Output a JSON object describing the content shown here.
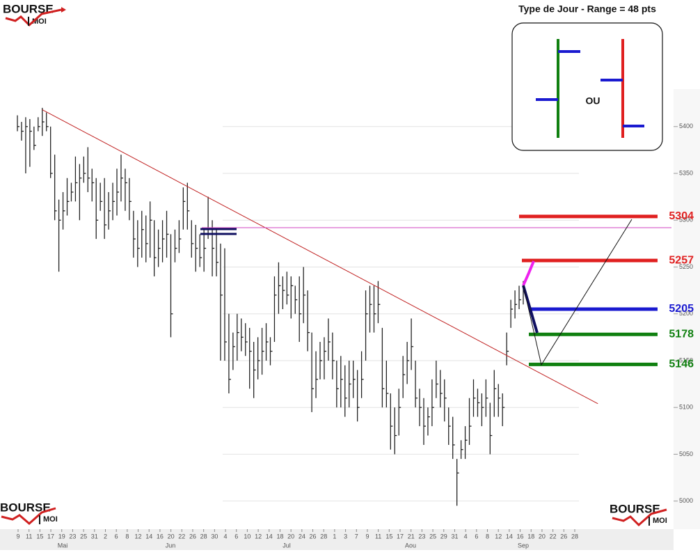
{
  "logo": {
    "word": "BOURSE",
    "sub": "MOI"
  },
  "chart_data": {
    "type": "ohlc",
    "ylim": [
      4970,
      5440
    ],
    "yticks": [
      5000,
      5050,
      5100,
      5150,
      5200,
      5250,
      5300,
      5350,
      5400
    ],
    "grid": true,
    "categories": [
      "9",
      "11",
      "15",
      "17",
      "19",
      "23",
      "25",
      "31",
      "2",
      "6",
      "8",
      "12",
      "14",
      "16",
      "20",
      "22",
      "26",
      "28",
      "30",
      "4",
      "6",
      "10",
      "12",
      "14",
      "18",
      "20",
      "24",
      "26",
      "28",
      "1",
      "3",
      "7",
      "9",
      "11",
      "15",
      "17",
      "21",
      "23",
      "25",
      "29",
      "31",
      "4",
      "6",
      "8",
      "12",
      "14",
      "16",
      "18",
      "20",
      "22",
      "26",
      "28"
    ],
    "months": [
      "Mai",
      "Jun",
      "Jul",
      "Aou",
      "Sep"
    ],
    "series": [
      {
        "color": "#222222",
        "high": [
          5412,
          5405,
          5410,
          5408,
          5400,
          5410,
          5420,
          5415,
          5400,
          5370,
          5322,
          5330,
          5345,
          5340,
          5368,
          5360,
          5368,
          5378,
          5355,
          5345,
          5340,
          5345,
          5330,
          5340,
          5355,
          5370,
          5355,
          5345,
          5310,
          5300,
          5310,
          5305,
          5320,
          5300,
          5290,
          5300,
          5310,
          5285,
          5290,
          5300,
          5335,
          5340,
          5300,
          5295,
          5285,
          5290,
          5325,
          5300,
          5290,
          5275,
          5270,
          5200,
          5180,
          5200,
          5195,
          5190,
          5185,
          5170,
          5175,
          5185,
          5190,
          5175,
          5240,
          5255,
          5240,
          5245,
          5240,
          5230,
          5240,
          5250,
          5225,
          5180,
          5160,
          5170,
          5175,
          5195,
          5180,
          5150,
          5155,
          5145,
          5150,
          5150,
          5140,
          5160,
          5225,
          5230,
          5230,
          5235,
          5185,
          5150,
          5115,
          5100,
          5120,
          5155,
          5170,
          5195,
          5150,
          5120,
          5110,
          5100,
          5130,
          5150,
          5140,
          5130,
          5100,
          5090,
          5045,
          5065,
          5080,
          5110,
          5130,
          5120,
          5115,
          5130,
          5105,
          5140,
          5125,
          5115,
          5180,
          5215,
          5225,
          5230,
          5235
        ],
        "low": [
          5395,
          5385,
          5350,
          5357,
          5375,
          5395,
          5390,
          5395,
          5345,
          5300,
          5245,
          5290,
          5305,
          5320,
          5320,
          5300,
          5340,
          5330,
          5320,
          5280,
          5310,
          5280,
          5290,
          5300,
          5305,
          5320,
          5310,
          5300,
          5260,
          5250,
          5260,
          5255,
          5260,
          5240,
          5250,
          5255,
          5260,
          5175,
          5255,
          5265,
          5290,
          5290,
          5260,
          5245,
          5250,
          5245,
          5280,
          5240,
          5240,
          5150,
          5150,
          5115,
          5140,
          5150,
          5160,
          5155,
          5120,
          5110,
          5130,
          5135,
          5150,
          5145,
          5170,
          5200,
          5205,
          5210,
          5195,
          5200,
          5170,
          5190,
          5160,
          5095,
          5110,
          5130,
          5130,
          5150,
          5130,
          5100,
          5100,
          5090,
          5100,
          5110,
          5085,
          5110,
          5150,
          5180,
          5180,
          5190,
          5100,
          5100,
          5055,
          5050,
          5070,
          5110,
          5125,
          5140,
          5100,
          5080,
          5060,
          5070,
          5080,
          5110,
          5100,
          5085,
          5060,
          5045,
          4995,
          5045,
          5045,
          5060,
          5090,
          5090,
          5080,
          5090,
          5050,
          5090,
          5090,
          5080,
          5145,
          5185,
          5195,
          5205,
          5210
        ],
        "close": [
          5400,
          5395,
          5400,
          5395,
          5380,
          5400,
          5405,
          5400,
          5350,
          5310,
          5300,
          5310,
          5320,
          5330,
          5340,
          5345,
          5350,
          5345,
          5340,
          5300,
          5320,
          5295,
          5310,
          5320,
          5330,
          5345,
          5340,
          5320,
          5280,
          5270,
          5290,
          5275,
          5300,
          5260,
          5270,
          5280,
          5285,
          5200,
          5270,
          5280,
          5320,
          5310,
          5275,
          5270,
          5260,
          5270,
          5290,
          5270,
          5255,
          5220,
          5170,
          5130,
          5165,
          5180,
          5175,
          5170,
          5160,
          5140,
          5150,
          5160,
          5170,
          5160,
          5220,
          5230,
          5225,
          5220,
          5230,
          5215,
          5200,
          5220,
          5180,
          5120,
          5130,
          5150,
          5160,
          5170,
          5150,
          5120,
          5130,
          5110,
          5125,
          5130,
          5100,
          5130,
          5200,
          5210,
          5200,
          5210,
          5120,
          5115,
          5080,
          5070,
          5100,
          5135,
          5150,
          5165,
          5110,
          5100,
          5080,
          5090,
          5100,
          5125,
          5115,
          5110,
          5080,
          5060,
          5030,
          5055,
          5065,
          5080,
          5110,
          5105,
          5100,
          5110,
          5070,
          5120,
          5110,
          5100,
          5160,
          5205,
          5210,
          5215,
          5225
        ]
      }
    ],
    "trendline": {
      "color": "#c02020",
      "x": [
        6,
        140
      ],
      "values": [
        5418,
        5104
      ]
    },
    "resistance": {
      "color": "#d040c0",
      "value": 5292
    },
    "levels": [
      {
        "value": 5304,
        "color": "#e02020"
      },
      {
        "value": 5257,
        "color": "#e02020"
      },
      {
        "value": 5205,
        "color": "#1a1ad0"
      },
      {
        "value": 5178,
        "color": "#108010"
      },
      {
        "value": 5146,
        "color": "#108010"
      }
    ]
  },
  "inset": {
    "title": "Type de Jour - Range = 48 pts",
    "or": "OU"
  }
}
